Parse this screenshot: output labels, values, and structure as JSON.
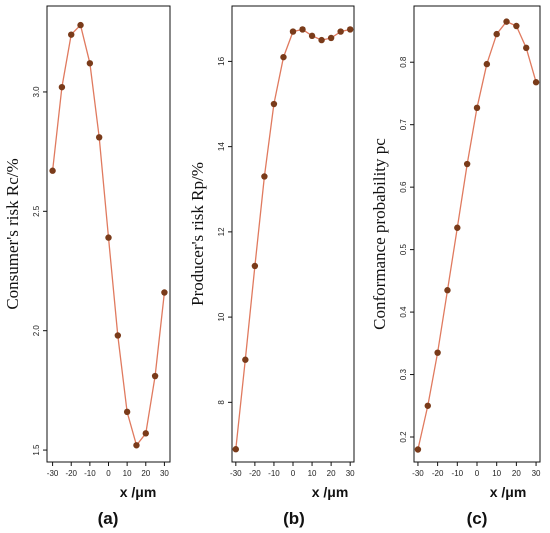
{
  "colors": {
    "line": "#e07a5f",
    "marker": "#7a3b1a",
    "marker_alt": "#3a7a3a",
    "frame": "#111111",
    "bg": "#ffffff"
  },
  "chart_data": [
    {
      "type": "line",
      "panel_label": "(a)",
      "ylabel": "Consumer's risk Rc/%",
      "xlabel": "x /μm",
      "x": [
        -30,
        -25,
        -20,
        -15,
        -10,
        -5,
        0,
        5,
        10,
        15,
        20,
        25,
        30
      ],
      "values": [
        2.67,
        3.02,
        3.24,
        3.28,
        3.12,
        2.81,
        2.39,
        1.98,
        1.66,
        1.52,
        1.57,
        1.81,
        2.16
      ],
      "xlim": [
        -33,
        33
      ],
      "ylim": [
        1.45,
        3.36
      ],
      "xticks": [
        -30,
        -20,
        -10,
        0,
        10,
        20,
        30
      ],
      "yticks": [
        1.5,
        2.0,
        2.5,
        3.0
      ],
      "ytick_labels": [
        "1.5",
        "2.0",
        "2.5",
        "3.0"
      ]
    },
    {
      "type": "line",
      "panel_label": "(b)",
      "ylabel": "Producer's risk Rp/%",
      "xlabel": "x /μm",
      "x": [
        -30,
        -25,
        -20,
        -15,
        -10,
        -5,
        0,
        5,
        10,
        15,
        20,
        25,
        30
      ],
      "values": [
        6.9,
        9.0,
        11.2,
        13.3,
        15.0,
        16.1,
        16.7,
        16.75,
        16.6,
        16.5,
        16.55,
        16.7,
        16.75
      ],
      "xlim": [
        -32,
        32
      ],
      "ylim": [
        6.6,
        17.3
      ],
      "xticks": [
        -30,
        -20,
        -10,
        0,
        10,
        20,
        30
      ],
      "yticks": [
        8,
        10,
        12,
        14,
        16
      ],
      "ytick_labels": [
        "8",
        "10",
        "12",
        "14",
        "16"
      ]
    },
    {
      "type": "line",
      "panel_label": "(c)",
      "ylabel": "Conformance probability pc",
      "xlabel": "x /μm",
      "x": [
        -30,
        -25,
        -20,
        -15,
        -10,
        -5,
        0,
        5,
        10,
        15,
        20,
        25,
        30
      ],
      "values": [
        0.18,
        0.25,
        0.335,
        0.435,
        0.535,
        0.637,
        0.727,
        0.797,
        0.845,
        0.865,
        0.858,
        0.823,
        0.768
      ],
      "xlim": [
        -32,
        32
      ],
      "ylim": [
        0.16,
        0.89
      ],
      "xticks": [
        -30,
        -20,
        -10,
        0,
        10,
        20,
        30
      ],
      "yticks": [
        0.2,
        0.3,
        0.4,
        0.5,
        0.6,
        0.7,
        0.8
      ],
      "ytick_labels": [
        "0.2",
        "0.3",
        "0.4",
        "0.5",
        "0.6",
        "0.7",
        "0.8"
      ]
    }
  ]
}
